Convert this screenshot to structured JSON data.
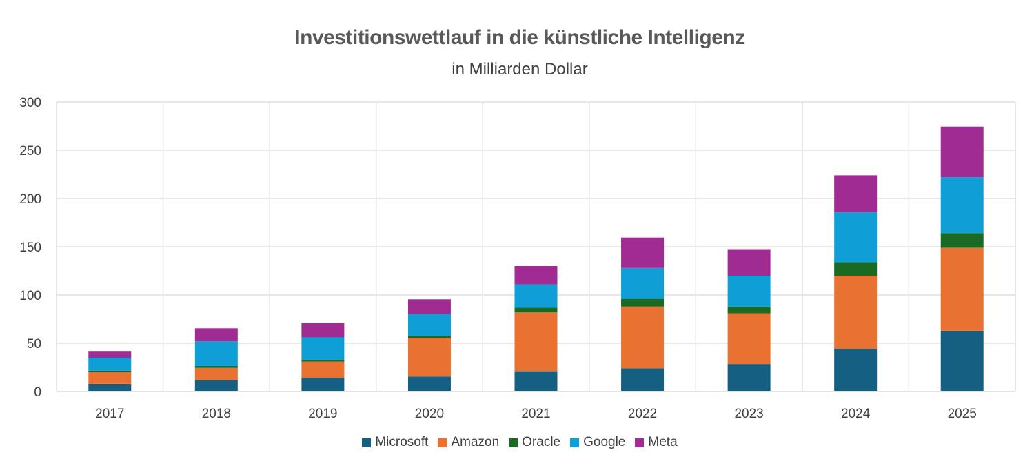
{
  "chart_data": {
    "type": "bar",
    "stacked": true,
    "title": "Investitionswettlauf in die künstliche Intelligenz",
    "subtitle": "in Milliarden Dollar",
    "categories": [
      "2017",
      "2018",
      "2019",
      "2020",
      "2021",
      "2022",
      "2023",
      "2024",
      "2025"
    ],
    "ylim": [
      0,
      300
    ],
    "yticks": [
      "0",
      "50",
      "100",
      "150",
      "200",
      "250",
      "300"
    ],
    "grid": true,
    "legend_position": "bottom",
    "series": [
      {
        "name": "Microsoft",
        "color": "#156082",
        "values": [
          8,
          11.5,
          14,
          15.5,
          21,
          24,
          28.5,
          44.5,
          63
        ]
      },
      {
        "name": "Amazon",
        "color": "#E97132",
        "values": [
          12,
          13,
          17,
          40,
          61,
          64,
          52.5,
          75.5,
          86
        ]
      },
      {
        "name": "Oracle",
        "color": "#196B24",
        "values": [
          1.5,
          2,
          1.5,
          2,
          5,
          8,
          7,
          14,
          15
        ]
      },
      {
        "name": "Google",
        "color": "#0F9ED5",
        "values": [
          13.5,
          25.5,
          23.5,
          22.5,
          24,
          32,
          32,
          51.5,
          58
        ]
      },
      {
        "name": "Meta",
        "color": "#A02B93",
        "values": [
          7,
          13.5,
          15,
          15.5,
          19,
          31.5,
          27.5,
          38.5,
          52.5
        ]
      }
    ]
  }
}
